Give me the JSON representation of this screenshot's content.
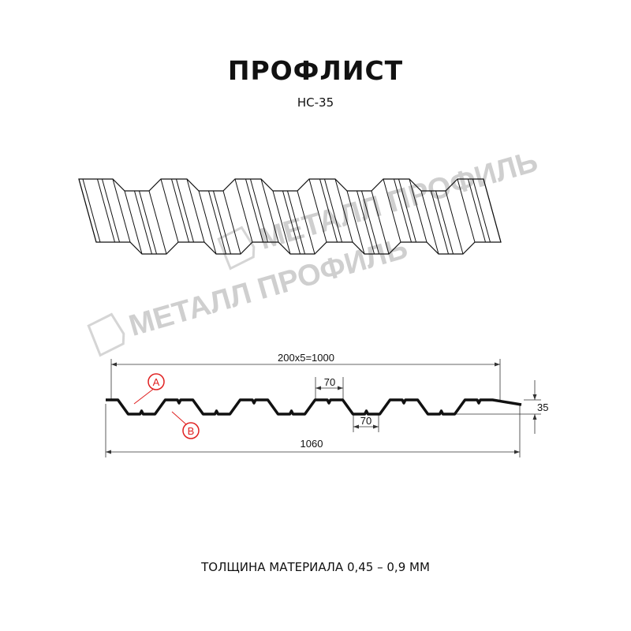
{
  "title": "ПРОФЛИСТ",
  "subtitle": "НС-35",
  "footer": "ТОЛЩИНА МАТЕРИАЛА 0,45 – 0,9 ММ",
  "watermark": "МЕТАЛЛ ПРОФИЛЬ",
  "dimensions": {
    "pitch_total": "200x5=1000",
    "top_flat": "70",
    "bottom_flat": "70",
    "height": "35",
    "overall_width": "1060"
  },
  "markers": {
    "a": "A",
    "b": "B"
  },
  "colors": {
    "profile": "#111111",
    "marker": "#e02020",
    "watermark": "#cfcfcf"
  }
}
